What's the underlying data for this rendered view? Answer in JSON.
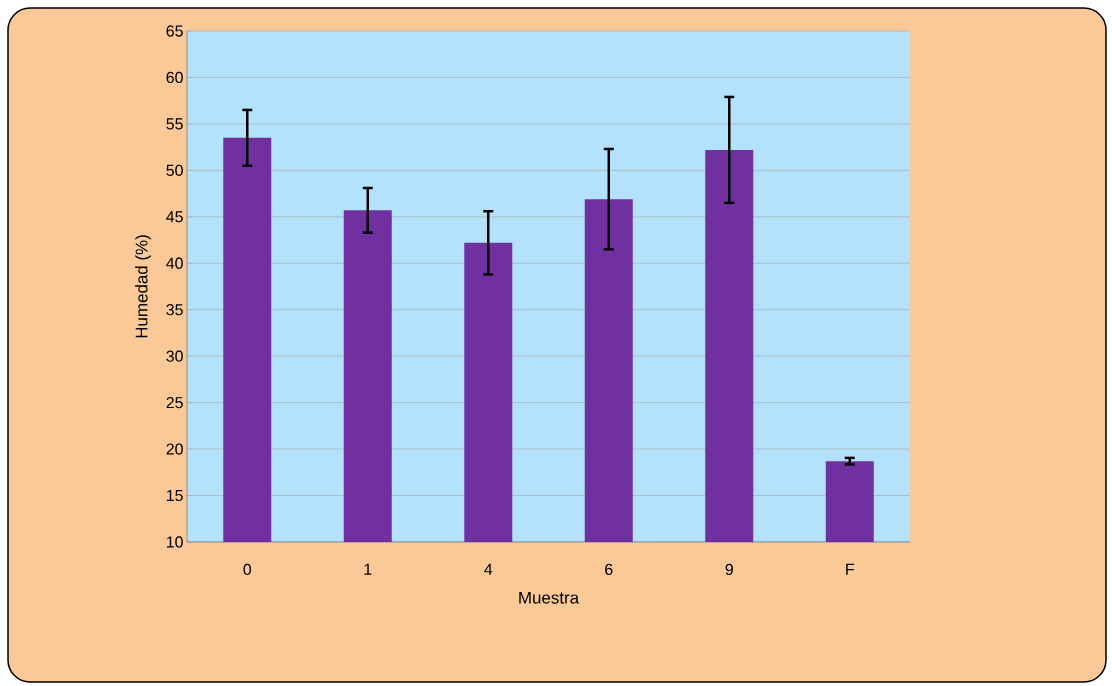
{
  "chart_data": {
    "type": "bar",
    "xlabel": "Muestra",
    "ylabel": "Humedad (%)",
    "categories": [
      "0",
      "1",
      "4",
      "6",
      "9",
      "F"
    ],
    "values": [
      53.5,
      45.7,
      42.2,
      46.9,
      52.2,
      18.7
    ],
    "errors": [
      3,
      2.4,
      3.4,
      5.4,
      5.7,
      0.35
    ],
    "color": "#7030a0",
    "ylim": [
      10,
      65
    ],
    "yticks": [
      10,
      15,
      20,
      25,
      30,
      35,
      40,
      45,
      50,
      55,
      60,
      65
    ],
    "grid": "y"
  }
}
